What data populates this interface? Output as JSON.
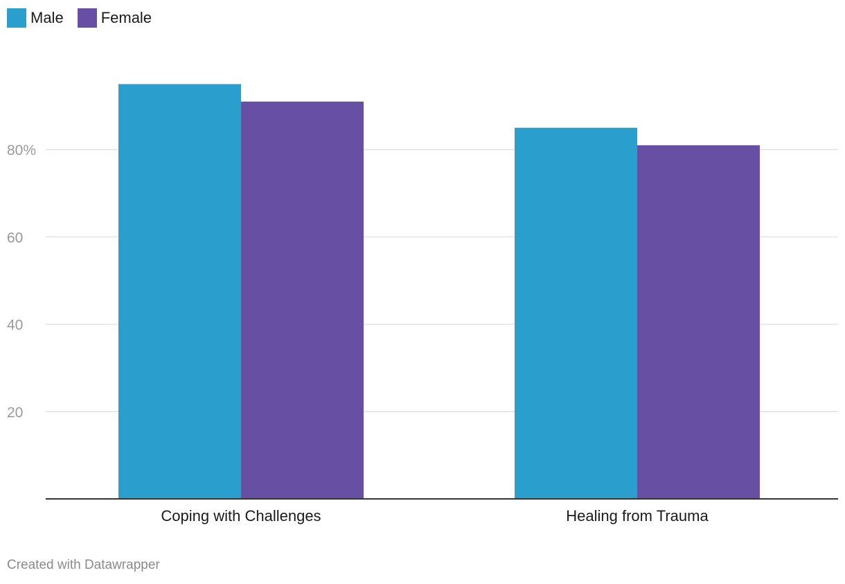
{
  "chart_data": {
    "type": "bar",
    "categories": [
      "Coping with Challenges",
      "Healing from Trauma"
    ],
    "series": [
      {
        "name": "Male",
        "color": "#2a9fcd",
        "values": [
          95,
          85
        ]
      },
      {
        "name": "Female",
        "color": "#6750a4",
        "values": [
          91,
          81
        ]
      }
    ],
    "ylim": [
      0,
      100
    ],
    "yticks": [
      {
        "value": 20,
        "label": "20"
      },
      {
        "value": 40,
        "label": "40"
      },
      {
        "value": 60,
        "label": "60"
      },
      {
        "value": 80,
        "label": "80%"
      }
    ],
    "grid": true,
    "legend_position": "top-left"
  },
  "footer": {
    "credit": "Created with Datawrapper"
  },
  "colors": {
    "grid": "#e2e2e2",
    "axis": "#333333",
    "tick_label": "#9a9a9a",
    "category_label": "#1a1a1a"
  }
}
